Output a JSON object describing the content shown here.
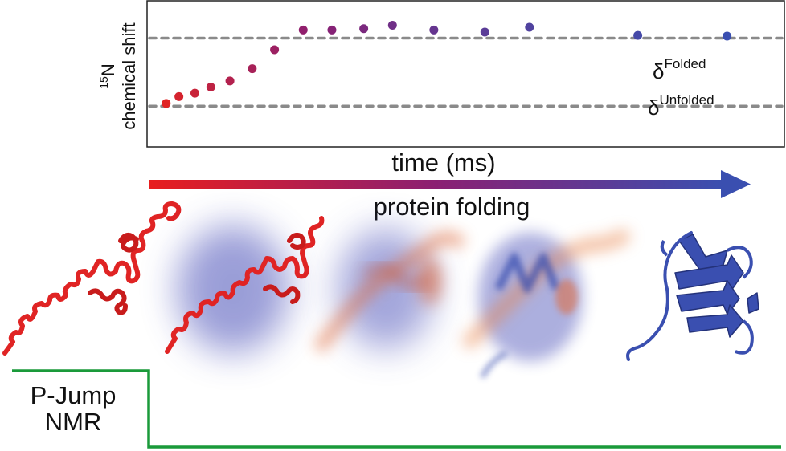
{
  "colors": {
    "unfolded": "#e02424",
    "folded": "#3a4fb0",
    "gridline": "#8a8a8a",
    "bracket": "#1a9a3a"
  },
  "chart_data": {
    "type": "scatter",
    "ylabel_sup": "15",
    "ylabel_line1": "N",
    "ylabel_line2": "chemical shift",
    "xlabel": "time (ms)",
    "reference_lines": [
      {
        "sym": "δ",
        "sup": "Folded",
        "level": 1.0
      },
      {
        "sym": "δ",
        "sup": "Unfolded",
        "level": 0.0
      }
    ],
    "ylim": [
      -0.6,
      1.55
    ],
    "xlim": [
      0,
      100
    ],
    "grid": false,
    "legend": "none",
    "x": [
      3,
      5,
      7.5,
      10,
      13,
      16.5,
      20,
      24.5,
      29,
      34,
      38.5,
      45,
      53,
      60,
      77,
      91
    ],
    "y": [
      0.04,
      0.14,
      0.19,
      0.28,
      0.37,
      0.55,
      0.83,
      1.12,
      1.12,
      1.14,
      1.19,
      1.12,
      1.09,
      1.16,
      1.04,
      1.03
    ]
  },
  "diagram": {
    "arrow_label": "protein folding",
    "pjump_line1": "P-Jump",
    "pjump_line2": "NMR"
  }
}
